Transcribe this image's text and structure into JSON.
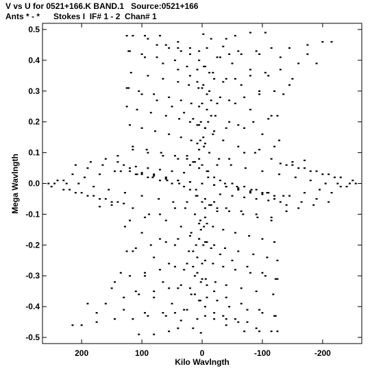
{
  "chart_data": {
    "type": "scatter",
    "title_line1": "V vs U for 0521+166.K BAND.1   Source:0521+166",
    "title_line2": "Ants * - *      Stokes I  IF# 1 - 2  Chan# 1",
    "xlabel": "Kilo Wavlngth",
    "ylabel": "Mega Wavlngth",
    "xlim": [
      265,
      -265
    ],
    "ylim": [
      -0.52,
      0.52
    ],
    "xticks": [
      200,
      100,
      0,
      -100,
      -200
    ],
    "xtick_labels": [
      "200",
      "100",
      "0",
      "-100",
      "-200"
    ],
    "yticks": [
      0.5,
      0.4,
      0.3,
      0.2,
      0.1,
      0.0,
      -0.1,
      -0.2,
      -0.3,
      -0.4,
      -0.5
    ],
    "ytick_labels": [
      "0.5",
      "0.4",
      "0.3",
      "0.2",
      "0.1",
      "0.0",
      "-0.1",
      "-0.2",
      "-0.3",
      "-0.4",
      "-0.5"
    ],
    "grid": false,
    "point_color": "#000000",
    "points": [
      [
        -2,
        0.485
      ],
      [
        -15,
        0.47
      ],
      [
        -35,
        0.445
      ],
      [
        -60,
        0.43
      ],
      [
        -95,
        0.42
      ],
      [
        -130,
        0.41
      ],
      [
        -175,
        0.42
      ],
      [
        -215,
        0.46
      ],
      [
        -8,
        0.44
      ],
      [
        -25,
        0.41
      ],
      [
        -50,
        0.39
      ],
      [
        -80,
        0.37
      ],
      [
        -110,
        0.35
      ],
      [
        -150,
        0.34
      ],
      [
        -190,
        0.39
      ],
      [
        5,
        0.43
      ],
      [
        20,
        0.44
      ],
      [
        40,
        0.46
      ],
      [
        70,
        0.48
      ],
      [
        95,
        0.48
      ],
      [
        125,
        0.48
      ],
      [
        -3,
        0.38
      ],
      [
        -18,
        0.36
      ],
      [
        -40,
        0.34
      ],
      [
        -65,
        0.32
      ],
      [
        -95,
        0.3
      ],
      [
        -135,
        0.29
      ],
      [
        8,
        0.37
      ],
      [
        25,
        0.38
      ],
      [
        45,
        0.4
      ],
      [
        75,
        0.41
      ],
      [
        100,
        0.42
      ],
      [
        122,
        0.43
      ],
      [
        -2,
        0.32
      ],
      [
        -12,
        0.3
      ],
      [
        -30,
        0.28
      ],
      [
        -55,
        0.26
      ],
      [
        -80,
        0.24
      ],
      [
        -115,
        0.22
      ],
      [
        6,
        0.31
      ],
      [
        22,
        0.32
      ],
      [
        40,
        0.33
      ],
      [
        65,
        0.34
      ],
      [
        90,
        0.35
      ],
      [
        118,
        0.36
      ],
      [
        0,
        0.26
      ],
      [
        -8,
        0.24
      ],
      [
        -22,
        0.22
      ],
      [
        -45,
        0.2
      ],
      [
        -70,
        0.18
      ],
      [
        -100,
        0.16
      ],
      [
        -128,
        0.14
      ],
      [
        5,
        0.25
      ],
      [
        18,
        0.26
      ],
      [
        35,
        0.27
      ],
      [
        55,
        0.28
      ],
      [
        80,
        0.29
      ],
      [
        105,
        0.3
      ],
      [
        122,
        0.31
      ],
      [
        2,
        0.2
      ],
      [
        -5,
        0.18
      ],
      [
        -18,
        0.16
      ],
      [
        -35,
        0.14
      ],
      [
        -60,
        0.12
      ],
      [
        -88,
        0.1
      ],
      [
        -115,
        0.08
      ],
      [
        8,
        0.19
      ],
      [
        20,
        0.2
      ],
      [
        38,
        0.21
      ],
      [
        60,
        0.22
      ],
      [
        85,
        0.23
      ],
      [
        108,
        0.24
      ],
      [
        125,
        0.25
      ],
      [
        3,
        0.14
      ],
      [
        -3,
        0.12
      ],
      [
        -12,
        0.1
      ],
      [
        -28,
        0.08
      ],
      [
        -48,
        0.06
      ],
      [
        -72,
        0.05
      ],
      [
        -100,
        0.04
      ],
      [
        -128,
        0.03
      ],
      [
        -155,
        0.02
      ],
      [
        -180,
        0.01
      ],
      [
        -205,
        0.0
      ],
      [
        -230,
        -0.01
      ],
      [
        8,
        0.13
      ],
      [
        18,
        0.14
      ],
      [
        35,
        0.15
      ],
      [
        55,
        0.16
      ],
      [
        78,
        0.17
      ],
      [
        100,
        0.18
      ],
      [
        120,
        0.19
      ],
      [
        5,
        0.08
      ],
      [
        0,
        0.06
      ],
      [
        -8,
        0.04
      ],
      [
        -20,
        0.02
      ],
      [
        -38,
        0.0
      ],
      [
        -58,
        -0.01
      ],
      [
        -82,
        -0.02
      ],
      [
        -108,
        -0.03
      ],
      [
        -135,
        -0.04
      ],
      [
        12,
        0.07
      ],
      [
        25,
        0.08
      ],
      [
        45,
        0.09
      ],
      [
        68,
        0.1
      ],
      [
        92,
        0.11
      ],
      [
        115,
        0.12
      ],
      [
        140,
        0.07
      ],
      [
        165,
        0.06
      ],
      [
        190,
        0.05
      ],
      [
        215,
        0.03
      ],
      [
        240,
        0.01
      ],
      [
        255,
        0.0
      ],
      [
        120,
        0.05
      ],
      [
        145,
        0.04
      ],
      [
        170,
        0.03
      ],
      [
        195,
        0.02
      ],
      [
        225,
        0.0
      ],
      [
        250,
        -0.01
      ],
      [
        60,
        0.02
      ],
      [
        40,
        0.01
      ],
      [
        20,
        0.005
      ],
      [
        0,
        0.0
      ],
      [
        -20,
        -0.005
      ],
      [
        -40,
        -0.01
      ],
      [
        -60,
        -0.02
      ],
      [
        -80,
        -0.03
      ],
      [
        100,
        0.03
      ],
      [
        80,
        0.025
      ],
      [
        60,
        0.015
      ],
      [
        -100,
        -0.035
      ],
      [
        -120,
        -0.04
      ],
      [
        -10,
        0.02
      ],
      [
        -30,
        0.01
      ],
      [
        -50,
        0.0
      ],
      [
        -70,
        -0.01
      ],
      [
        -90,
        -0.02
      ],
      [
        -110,
        -0.03
      ],
      [
        30,
        0.035
      ],
      [
        50,
        0.04
      ],
      [
        70,
        0.045
      ],
      [
        90,
        0.05
      ],
      [
        110,
        0.055
      ],
      [
        130,
        0.06
      ],
      [
        -140,
        0.06
      ],
      [
        -160,
        0.05
      ],
      [
        -180,
        0.04
      ],
      [
        -200,
        0.03
      ],
      [
        -220,
        0.02
      ],
      [
        -245,
        0.0
      ],
      [
        -130,
        0.065
      ],
      [
        -150,
        0.07
      ],
      [
        -170,
        0.075
      ],
      [
        150,
        -0.06
      ],
      [
        170,
        -0.05
      ],
      [
        190,
        -0.04
      ],
      [
        210,
        -0.03
      ],
      [
        230,
        -0.02
      ],
      [
        -5,
        -0.05
      ],
      [
        -15,
        -0.07
      ],
      [
        -25,
        -0.09
      ],
      [
        -5,
        -0.11
      ],
      [
        5,
        -0.13
      ],
      [
        2,
        -0.15
      ],
      [
        10,
        -0.04
      ],
      [
        25,
        -0.06
      ],
      [
        45,
        -0.08
      ],
      [
        70,
        -0.1
      ],
      [
        95,
        -0.11
      ],
      [
        120,
        -0.12
      ],
      [
        -20,
        -0.06
      ],
      [
        -40,
        -0.08
      ],
      [
        -65,
        -0.09
      ],
      [
        -90,
        -0.1
      ],
      [
        -115,
        -0.11
      ],
      [
        -140,
        -0.09
      ],
      [
        -160,
        -0.08
      ],
      [
        -185,
        -0.07
      ],
      [
        -210,
        -0.06
      ],
      [
        5,
        -0.18
      ],
      [
        10,
        -0.2
      ],
      [
        15,
        -0.22
      ],
      [
        -5,
        -0.19
      ],
      [
        -15,
        -0.21
      ],
      [
        -30,
        -0.23
      ],
      [
        -50,
        -0.25
      ],
      [
        -75,
        -0.27
      ],
      [
        -100,
        -0.29
      ],
      [
        -125,
        -0.31
      ],
      [
        20,
        -0.17
      ],
      [
        40,
        -0.18
      ],
      [
        60,
        -0.19
      ],
      [
        85,
        -0.2
      ],
      [
        110,
        -0.21
      ],
      [
        125,
        -0.22
      ],
      [
        15,
        -0.27
      ],
      [
        8,
        -0.29
      ],
      [
        0,
        -0.31
      ],
      [
        -8,
        -0.33
      ],
      [
        -20,
        -0.35
      ],
      [
        -40,
        -0.37
      ],
      [
        -65,
        -0.39
      ],
      [
        -95,
        -0.41
      ],
      [
        -120,
        -0.43
      ],
      [
        25,
        -0.26
      ],
      [
        45,
        -0.27
      ],
      [
        70,
        -0.28
      ],
      [
        95,
        -0.29
      ],
      [
        120,
        -0.3
      ],
      [
        145,
        -0.32
      ],
      [
        20,
        -0.34
      ],
      [
        12,
        -0.36
      ],
      [
        5,
        -0.38
      ],
      [
        -5,
        -0.4
      ],
      [
        -20,
        -0.42
      ],
      [
        -40,
        -0.44
      ],
      [
        -60,
        -0.45
      ],
      [
        -90,
        -0.47
      ],
      [
        -115,
        -0.48
      ],
      [
        35,
        -0.33
      ],
      [
        55,
        -0.34
      ],
      [
        80,
        -0.35
      ],
      [
        105,
        -0.36
      ],
      [
        130,
        -0.37
      ],
      [
        160,
        -0.39
      ],
      [
        30,
        -0.41
      ],
      [
        45,
        -0.42
      ],
      [
        65,
        -0.42
      ],
      [
        90,
        -0.43
      ],
      [
        115,
        -0.44
      ],
      [
        145,
        -0.44
      ],
      [
        175,
        -0.45
      ],
      [
        200,
        -0.46
      ],
      [
        40,
        -0.47
      ],
      [
        55,
        -0.48
      ],
      [
        80,
        -0.49
      ],
      [
        105,
        -0.49
      ],
      [
        -35,
        -0.43
      ],
      [
        -55,
        -0.44
      ],
      [
        -75,
        -0.45
      ]
    ]
  }
}
